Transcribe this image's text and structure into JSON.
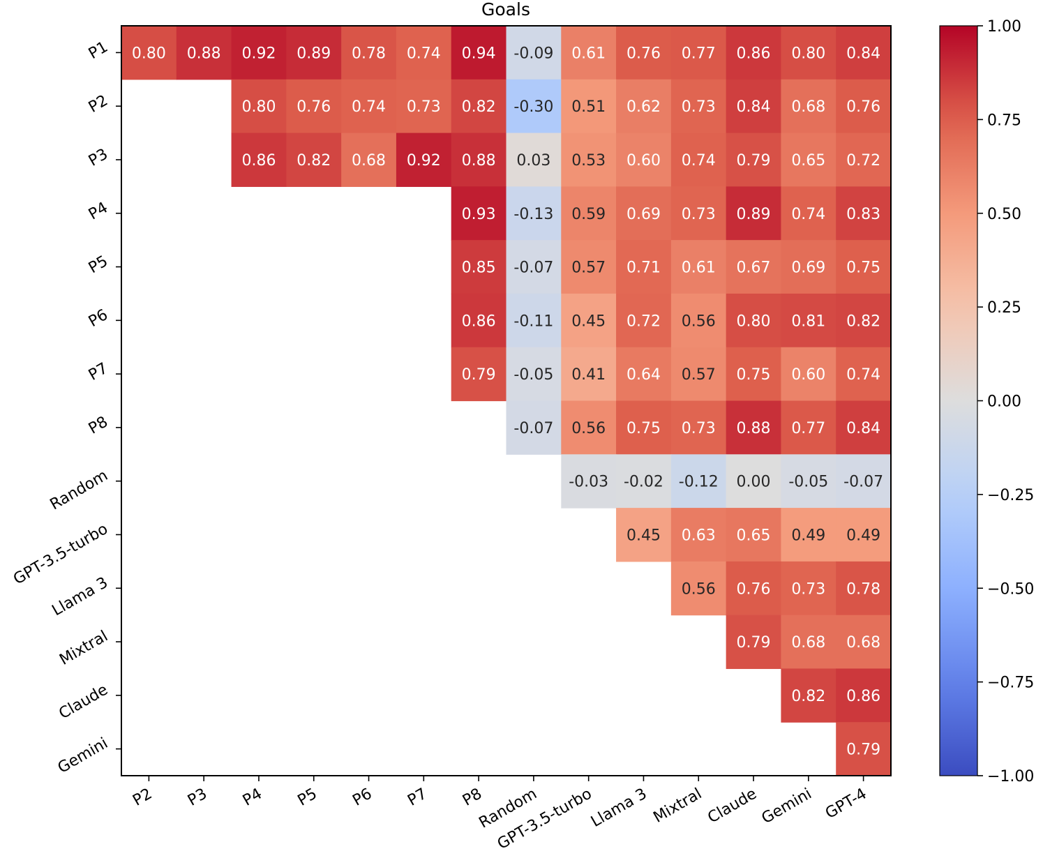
{
  "chart_data": {
    "type": "heatmap",
    "title": "Goals",
    "colormap": "coolwarm",
    "vmin": -1.0,
    "vmax": 1.0,
    "row_labels": [
      "P1",
      "P2",
      "P3",
      "P4",
      "P5",
      "P6",
      "P7",
      "P8",
      "Random",
      "GPT-3.5-turbo",
      "Llama 3",
      "Mixtral",
      "Claude",
      "Gemini"
    ],
    "col_labels": [
      "P2",
      "P3",
      "P4",
      "P5",
      "P6",
      "P7",
      "P8",
      "Random",
      "GPT-3.5-turbo",
      "Llama 3",
      "Mixtral",
      "Claude",
      "Gemini",
      "GPT-4"
    ],
    "values": [
      [
        0.8,
        0.88,
        0.92,
        0.89,
        0.78,
        0.74,
        0.94,
        -0.09,
        0.61,
        0.76,
        0.77,
        0.86,
        0.8,
        0.84
      ],
      [
        null,
        null,
        0.8,
        0.76,
        0.74,
        0.73,
        0.82,
        -0.3,
        0.51,
        0.62,
        0.73,
        0.84,
        0.68,
        0.76
      ],
      [
        null,
        null,
        0.86,
        0.82,
        0.68,
        0.92,
        0.88,
        0.03,
        0.53,
        0.6,
        0.74,
        0.79,
        0.65,
        0.72
      ],
      [
        null,
        null,
        null,
        null,
        null,
        null,
        0.93,
        -0.13,
        0.59,
        0.69,
        0.73,
        0.89,
        0.74,
        0.83
      ],
      [
        null,
        null,
        null,
        null,
        null,
        null,
        0.85,
        -0.07,
        0.57,
        0.71,
        0.61,
        0.67,
        0.69,
        0.75
      ],
      [
        null,
        null,
        null,
        null,
        null,
        null,
        0.86,
        -0.11,
        0.45,
        0.72,
        0.56,
        0.8,
        0.81,
        0.82
      ],
      [
        null,
        null,
        null,
        null,
        null,
        null,
        0.79,
        -0.05,
        0.41,
        0.64,
        0.57,
        0.75,
        0.6,
        0.74
      ],
      [
        null,
        null,
        null,
        null,
        null,
        null,
        null,
        -0.07,
        0.56,
        0.75,
        0.73,
        0.88,
        0.77,
        0.84
      ],
      [
        null,
        null,
        null,
        null,
        null,
        null,
        null,
        null,
        -0.03,
        -0.02,
        -0.12,
        0.0,
        -0.05,
        -0.07
      ],
      [
        null,
        null,
        null,
        null,
        null,
        null,
        null,
        null,
        null,
        0.45,
        0.63,
        0.65,
        0.49,
        0.49
      ],
      [
        null,
        null,
        null,
        null,
        null,
        null,
        null,
        null,
        null,
        null,
        0.56,
        0.76,
        0.73,
        0.78
      ],
      [
        null,
        null,
        null,
        null,
        null,
        null,
        null,
        null,
        null,
        null,
        null,
        0.79,
        0.68,
        0.68
      ],
      [
        null,
        null,
        null,
        null,
        null,
        null,
        null,
        null,
        null,
        null,
        null,
        null,
        0.82,
        0.86
      ],
      [
        null,
        null,
        null,
        null,
        null,
        null,
        null,
        null,
        null,
        null,
        null,
        null,
        null,
        0.79
      ]
    ],
    "colorbar": {
      "ticks": [
        1.0,
        0.75,
        0.5,
        0.25,
        0.0,
        -0.25,
        -0.5,
        -0.75,
        -1.0
      ],
      "tick_labels": [
        "1.00",
        "0.75",
        "0.50",
        "0.25",
        "0.00",
        "−0.25",
        "−0.50",
        "−0.75",
        "−1.00"
      ]
    }
  }
}
